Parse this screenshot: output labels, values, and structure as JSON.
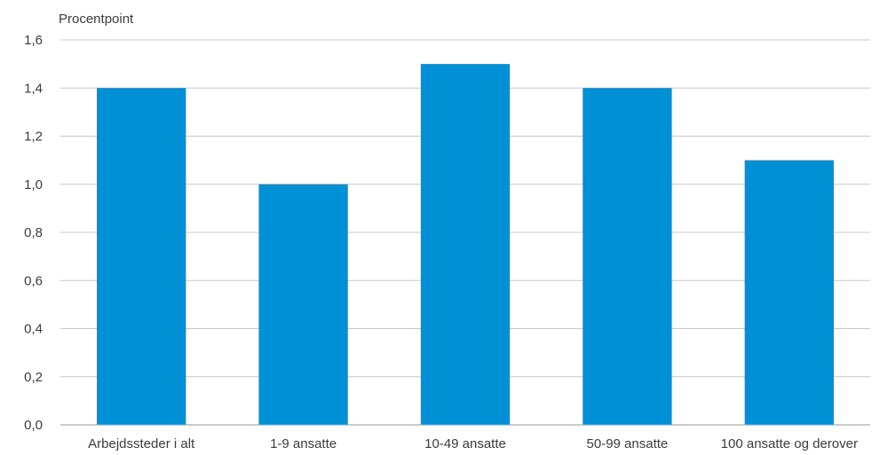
{
  "chart_data": {
    "type": "bar",
    "ylabel": "Procentpoint",
    "categories": [
      "Arbejdssteder i alt",
      "1-9 ansatte",
      "10-49 ansatte",
      "50-99 ansatte",
      "100 ansatte og derover"
    ],
    "values": [
      1.4,
      1.0,
      1.5,
      1.4,
      1.1
    ],
    "ylim": [
      0,
      1.6
    ],
    "yticks": [
      "0,0",
      "0,2",
      "0,4",
      "0,6",
      "0,8",
      "1,0",
      "1,2",
      "1,4",
      "1,6"
    ],
    "grid": true,
    "legend": "none",
    "bar_color": "#0090d6"
  }
}
